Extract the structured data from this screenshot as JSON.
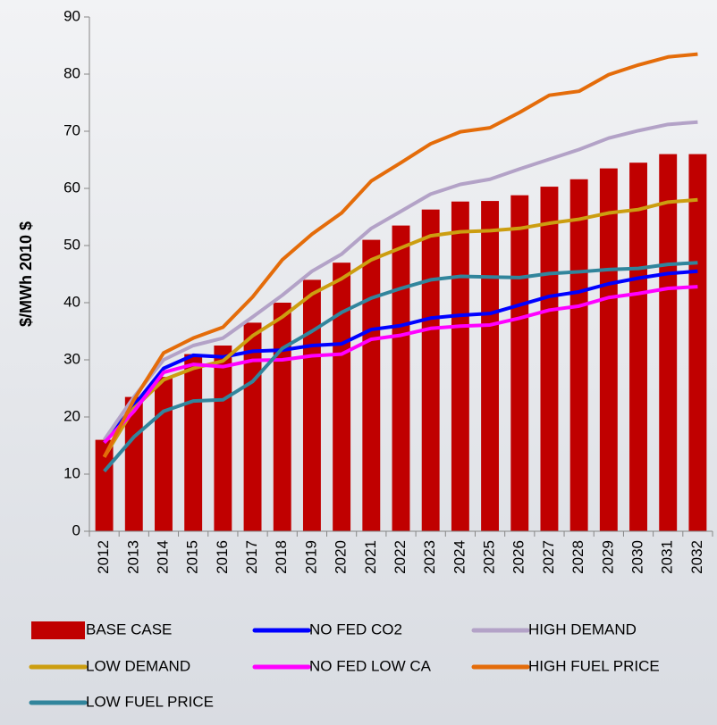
{
  "chart_data": {
    "type": "bar_line",
    "y_label": "$/MWh 2010 $",
    "categories": [
      "2012",
      "2013",
      "2014",
      "2015",
      "2016",
      "2017",
      "2018",
      "2019",
      "2020",
      "2021",
      "2022",
      "2023",
      "2024",
      "2025",
      "2026",
      "2027",
      "2028",
      "2029",
      "2030",
      "2031",
      "2032"
    ],
    "ylim": [
      0,
      90
    ],
    "yticks": [
      0,
      10,
      20,
      30,
      40,
      50,
      60,
      70,
      80,
      90
    ],
    "series": [
      {
        "name": "BASE CASE",
        "color": "#c00000",
        "style": "bar",
        "values": [
          16,
          23.5,
          27,
          31,
          32.5,
          36.5,
          40,
          44,
          47,
          51,
          53.5,
          56.3,
          57.7,
          57.8,
          58.8,
          60.3,
          61.6,
          63.5,
          64.5,
          66,
          66
        ]
      },
      {
        "name": "NO FED CO2",
        "color": "#0000ff",
        "style": "line",
        "values": [
          15.5,
          22,
          28.5,
          30.8,
          30.5,
          31.5,
          31.7,
          32.5,
          32.8,
          35.3,
          36,
          37.3,
          37.8,
          38.1,
          39.6,
          41.1,
          41.9,
          43.3,
          44.3,
          45.1,
          45.5
        ]
      },
      {
        "name": "HIGH DEMAND",
        "color": "#b3a2c7",
        "style": "line",
        "values": [
          16,
          23.5,
          30,
          32.5,
          33.8,
          37.5,
          41.3,
          45.5,
          48.5,
          53,
          56,
          59,
          60.7,
          61.6,
          63.4,
          65.1,
          66.8,
          68.8,
          70.1,
          71.2,
          71.6
        ]
      },
      {
        "name": "LOW DEMAND",
        "color": "#cc9e10",
        "style": "line",
        "values": [
          13,
          21.5,
          26.5,
          28.5,
          29.8,
          34.2,
          37.5,
          41.5,
          44.2,
          47.5,
          49.6,
          51.7,
          52.4,
          52.6,
          53,
          53.9,
          54.6,
          55.7,
          56.3,
          57.6,
          58
        ]
      },
      {
        "name": "NO FED LOW CA",
        "color": "#ff00ff",
        "style": "line",
        "values": [
          15.5,
          21,
          27.8,
          29.2,
          28.8,
          29.9,
          30,
          30.7,
          31,
          33.6,
          34.3,
          35.5,
          35.9,
          36.1,
          37.3,
          38.7,
          39.4,
          40.9,
          41.6,
          42.5,
          42.8
        ]
      },
      {
        "name": "HIGH FUEL PRICE",
        "color": "#e46c0a",
        "style": "line",
        "values": [
          13,
          23,
          31.2,
          33.8,
          35.7,
          41,
          47.5,
          52,
          55.7,
          61.3,
          64.5,
          67.8,
          69.9,
          70.6,
          73.3,
          76.3,
          77,
          79.9,
          81.6,
          83,
          83.5
        ]
      },
      {
        "name": "LOW FUEL PRICE",
        "color": "#31859c",
        "style": "line",
        "values": [
          10.5,
          16.5,
          21,
          22.8,
          23,
          26.2,
          32,
          35,
          38.3,
          40.8,
          42.5,
          44,
          44.6,
          44.5,
          44.4,
          45.1,
          45.4,
          45.8,
          46,
          46.7,
          47
        ]
      }
    ]
  }
}
